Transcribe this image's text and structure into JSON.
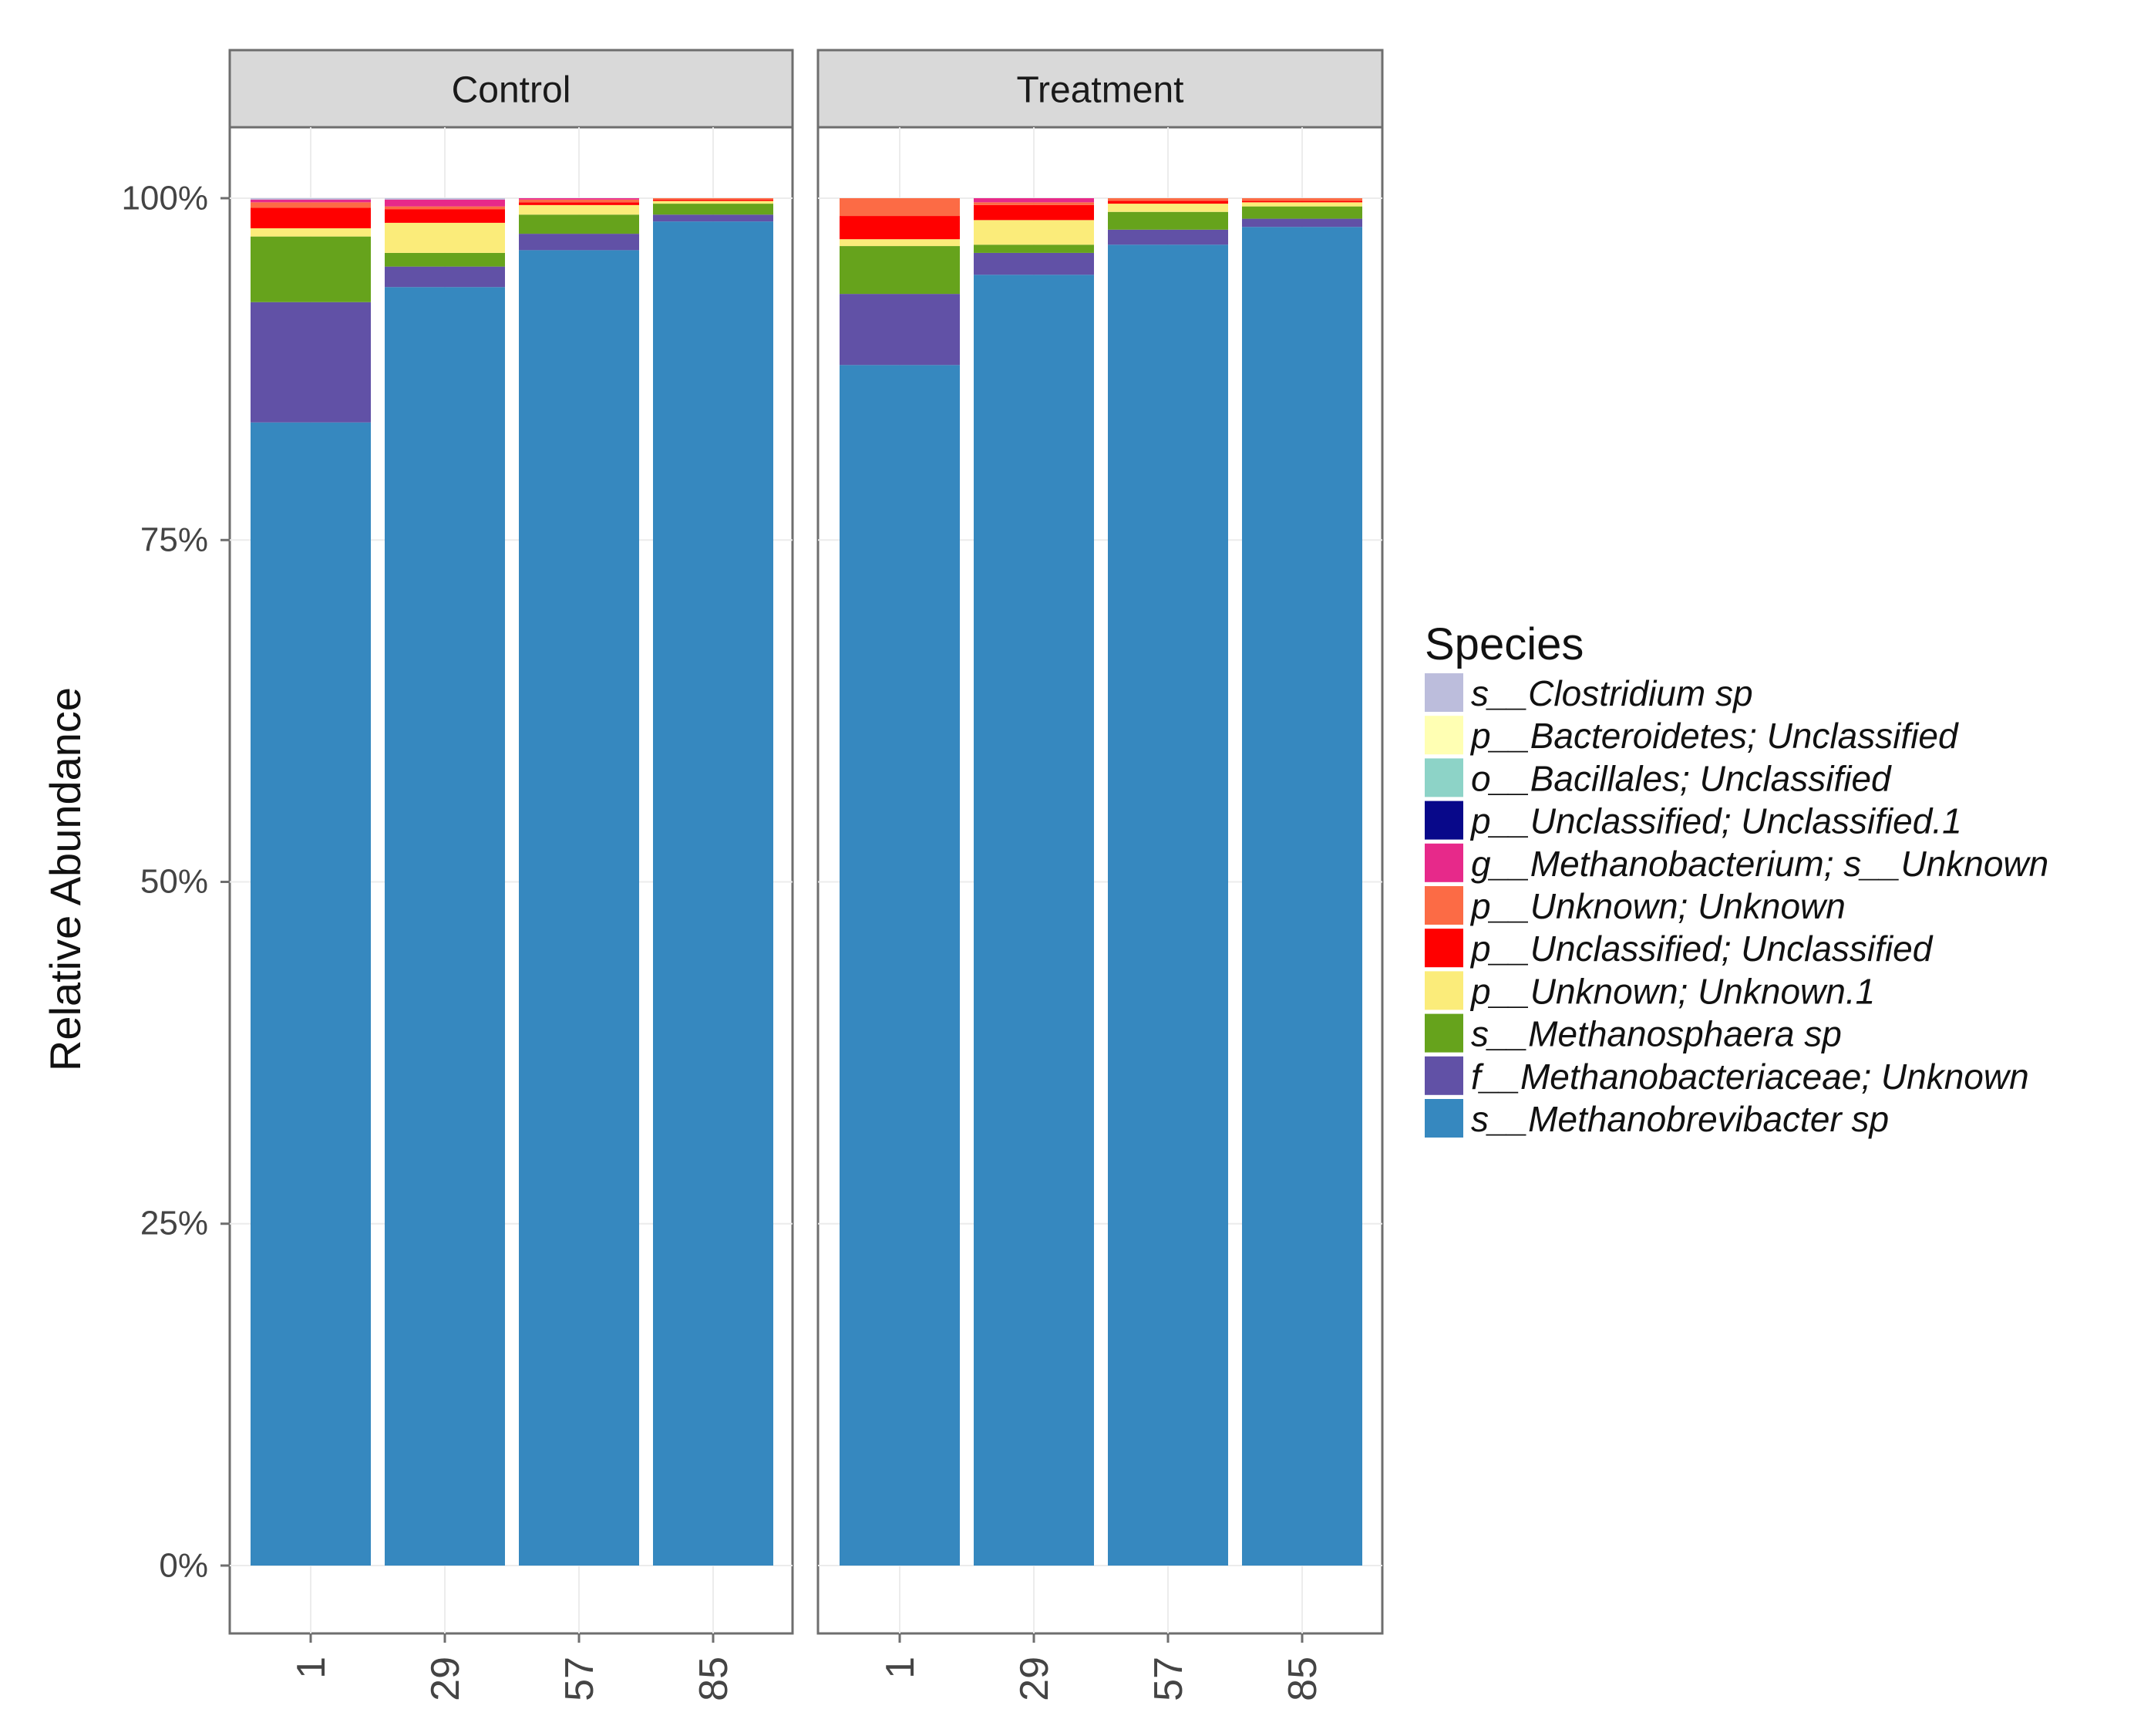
{
  "chart_data": {
    "type": "stacked-bar",
    "title": "",
    "xlabel": "",
    "ylabel": "Relative Abundance",
    "ylim": [
      0,
      100
    ],
    "yticks": [
      0,
      25,
      50,
      75,
      100
    ],
    "ytick_labels": [
      "0%",
      "25%",
      "50%",
      "75%",
      "100%"
    ],
    "categories": [
      "1",
      "29",
      "57",
      "85"
    ],
    "legend_title": "Species",
    "legend_position": "right",
    "species": [
      {
        "name": "s__Clostridium sp",
        "color": "#bcbddc"
      },
      {
        "name": "p__Bacteroidetes; Unclassified",
        "color": "#ffffb3"
      },
      {
        "name": "o__Bacillales; Unclassified",
        "color": "#8dd3c7"
      },
      {
        "name": "p__Unclassified; Unclassified.1",
        "color": "#08088a"
      },
      {
        "name": "g__Methanobacterium; s__Unknown",
        "color": "#e7298a"
      },
      {
        "name": "p__Unknown; Unknown",
        "color": "#fc6b45"
      },
      {
        "name": "p__Unclassified; Unclassified",
        "color": "#ff0000"
      },
      {
        "name": "p__Unknown; Unknown.1",
        "color": "#fbec7a"
      },
      {
        "name": "s__Methanosphaera sp",
        "color": "#66a31c"
      },
      {
        "name": "f__Methanobacteriaceae; Unknown",
        "color": "#6151a6"
      },
      {
        "name": "s__Methanobrevibacter sp",
        "color": "#3688bf"
      }
    ],
    "panels": [
      {
        "name": "Control",
        "bars": [
          {
            "x": "1",
            "segments": [
              83.6,
              8.8,
              4.8,
              0.6,
              1.5,
              0.4,
              0.2,
              0.0,
              0.0,
              0.0,
              0.1
            ]
          },
          {
            "x": "29",
            "segments": [
              93.5,
              1.5,
              1.0,
              2.2,
              1.0,
              0.2,
              0.5,
              0.0,
              0.0,
              0.0,
              0.1
            ]
          },
          {
            "x": "57",
            "segments": [
              96.2,
              1.2,
              1.4,
              0.7,
              0.2,
              0.2,
              0.1,
              0.0,
              0.0,
              0.0,
              0.0
            ]
          },
          {
            "x": "85",
            "segments": [
              98.3,
              0.5,
              0.8,
              0.2,
              0.1,
              0.1,
              0.0,
              0.0,
              0.0,
              0.0,
              0.0
            ]
          }
        ]
      },
      {
        "name": "Treatment",
        "bars": [
          {
            "x": "1",
            "segments": [
              87.8,
              5.2,
              3.5,
              0.5,
              1.7,
              1.3,
              0.0,
              0.0,
              0.0,
              0.0,
              0.0
            ]
          },
          {
            "x": "29",
            "segments": [
              94.4,
              1.6,
              0.6,
              1.8,
              1.1,
              0.2,
              0.3,
              0.0,
              0.0,
              0.0,
              0.0
            ]
          },
          {
            "x": "57",
            "segments": [
              96.6,
              1.1,
              1.3,
              0.6,
              0.2,
              0.2,
              0.0,
              0.0,
              0.0,
              0.0,
              0.0
            ]
          },
          {
            "x": "85",
            "segments": [
              97.9,
              0.6,
              0.9,
              0.3,
              0.1,
              0.2,
              0.0,
              0.0,
              0.0,
              0.0,
              0.0
            ]
          }
        ]
      }
    ]
  }
}
